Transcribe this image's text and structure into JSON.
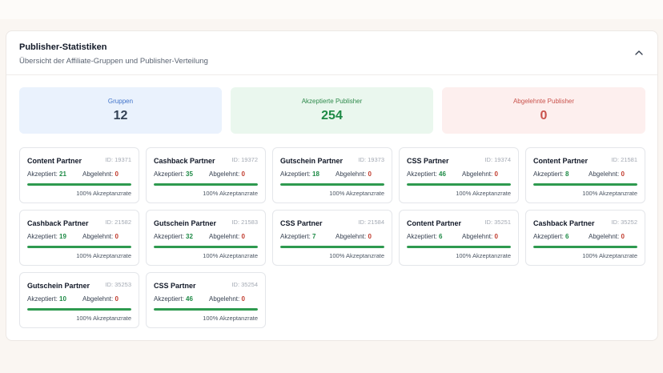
{
  "panel": {
    "title": "Publisher-Statistiken",
    "subtitle": "Übersicht der Affiliate-Gruppen und Publisher-Verteilung",
    "collapse_icon": "chevron-up-icon"
  },
  "summary": {
    "groups": {
      "label": "Gruppen",
      "value": "12"
    },
    "accepted": {
      "label": "Akzeptierte Publisher",
      "value": "254"
    },
    "rejected": {
      "label": "Abgelehnte Publisher",
      "value": "0"
    }
  },
  "labels": {
    "accepted": "Akzeptiert:",
    "rejected": "Abgelehnt:",
    "rate_suffix": "Akzeptanzrate"
  },
  "colors": {
    "accent_green": "#1d8a45",
    "accent_red": "#c0392b",
    "accent_blue": "#3f72c9"
  },
  "groups": [
    {
      "name": "Content Partner",
      "id": "ID: 19371",
      "accepted": "21",
      "rejected": "0",
      "rate": "100%",
      "rate_value": 1.0
    },
    {
      "name": "Cashback Partner",
      "id": "ID: 19372",
      "accepted": "35",
      "rejected": "0",
      "rate": "100%",
      "rate_value": 1.0
    },
    {
      "name": "Gutschein Partner",
      "id": "ID: 19373",
      "accepted": "18",
      "rejected": "0",
      "rate": "100%",
      "rate_value": 1.0
    },
    {
      "name": "CSS Partner",
      "id": "ID: 19374",
      "accepted": "46",
      "rejected": "0",
      "rate": "100%",
      "rate_value": 1.0
    },
    {
      "name": "Content Partner",
      "id": "ID: 21581",
      "accepted": "8",
      "rejected": "0",
      "rate": "100%",
      "rate_value": 1.0
    },
    {
      "name": "Cashback Partner",
      "id": "ID: 21582",
      "accepted": "19",
      "rejected": "0",
      "rate": "100%",
      "rate_value": 1.0
    },
    {
      "name": "Gutschein Partner",
      "id": "ID: 21583",
      "accepted": "32",
      "rejected": "0",
      "rate": "100%",
      "rate_value": 1.0
    },
    {
      "name": "CSS Partner",
      "id": "ID: 21584",
      "accepted": "7",
      "rejected": "0",
      "rate": "100%",
      "rate_value": 1.0
    },
    {
      "name": "Content Partner",
      "id": "ID: 35251",
      "accepted": "6",
      "rejected": "0",
      "rate": "100%",
      "rate_value": 1.0
    },
    {
      "name": "Cashback Partner",
      "id": "ID: 35252",
      "accepted": "6",
      "rejected": "0",
      "rate": "100%",
      "rate_value": 1.0
    },
    {
      "name": "Gutschein Partner",
      "id": "ID: 35253",
      "accepted": "10",
      "rejected": "0",
      "rate": "100%",
      "rate_value": 1.0
    },
    {
      "name": "CSS Partner",
      "id": "ID: 35254",
      "accepted": "46",
      "rejected": "0",
      "rate": "100%",
      "rate_value": 1.0
    }
  ]
}
